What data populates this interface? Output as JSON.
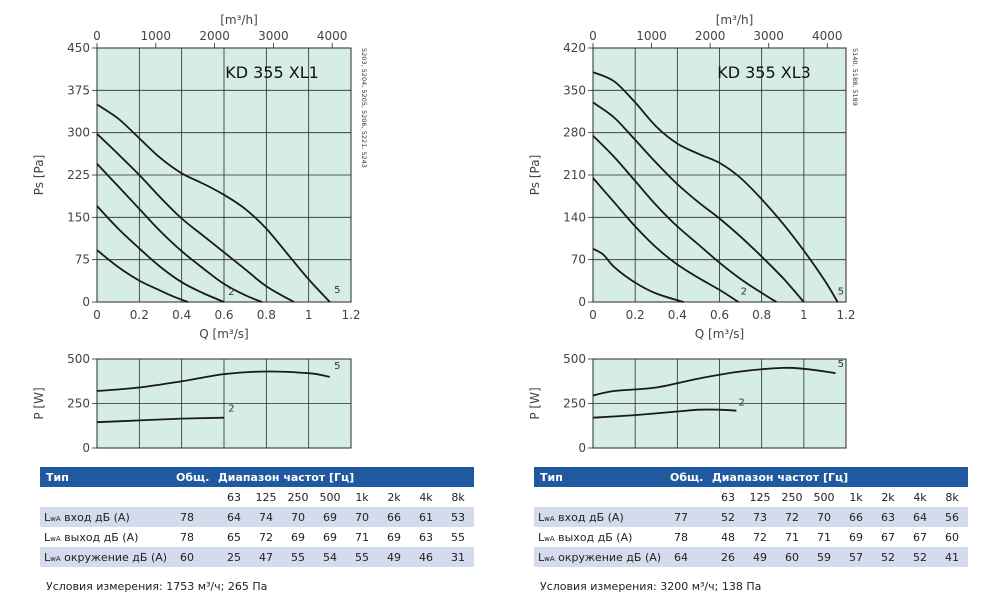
{
  "charts": [
    {
      "model": "KD 355 XL1",
      "side_text": "5203, 5204, 5205, 5206, 5221, 5243",
      "top_axis": {
        "label": "[m³/h]",
        "ticks": [
          "0",
          "1000",
          "2000",
          "3000",
          "4000"
        ]
      },
      "performance": {
        "type": "line",
        "xlabel": "Q [m³/s]",
        "ylabel": "Ps [Pa]",
        "xlim": [
          0,
          1.2
        ],
        "ylim": [
          0,
          450
        ],
        "x_ticks": [
          "0",
          "0.2",
          "0.4",
          "0.6",
          "0.8",
          "1",
          "1.2"
        ],
        "y_ticks": [
          "0",
          "75",
          "150",
          "225",
          "300",
          "375",
          "450"
        ],
        "grid": true,
        "curve_labels": [
          {
            "text": "2",
            "x": 0.62,
            "y": 12
          },
          {
            "text": "5",
            "x": 1.12,
            "y": 16
          }
        ],
        "series": [
          {
            "points": [
              [
                0,
                92
              ],
              [
                0.1,
                62
              ],
              [
                0.2,
                38
              ],
              [
                0.3,
                20
              ],
              [
                0.36,
                10
              ],
              [
                0.43,
                0
              ]
            ]
          },
          {
            "points": [
              [
                0,
                170
              ],
              [
                0.1,
                130
              ],
              [
                0.2,
                95
              ],
              [
                0.3,
                62
              ],
              [
                0.4,
                35
              ],
              [
                0.5,
                16
              ],
              [
                0.6,
                0
              ]
            ]
          },
          {
            "points": [
              [
                0,
                245
              ],
              [
                0.1,
                205
              ],
              [
                0.2,
                165
              ],
              [
                0.3,
                125
              ],
              [
                0.4,
                90
              ],
              [
                0.5,
                60
              ],
              [
                0.6,
                32
              ],
              [
                0.7,
                12
              ],
              [
                0.78,
                0
              ]
            ]
          },
          {
            "points": [
              [
                0,
                298
              ],
              [
                0.1,
                262
              ],
              [
                0.2,
                225
              ],
              [
                0.3,
                185
              ],
              [
                0.4,
                148
              ],
              [
                0.5,
                118
              ],
              [
                0.6,
                88
              ],
              [
                0.7,
                58
              ],
              [
                0.8,
                28
              ],
              [
                0.93,
                0
              ]
            ]
          },
          {
            "points": [
              [
                0,
                350
              ],
              [
                0.1,
                325
              ],
              [
                0.2,
                290
              ],
              [
                0.3,
                255
              ],
              [
                0.4,
                228
              ],
              [
                0.5,
                210
              ],
              [
                0.6,
                190
              ],
              [
                0.7,
                165
              ],
              [
                0.8,
                130
              ],
              [
                0.9,
                85
              ],
              [
                1.0,
                40
              ],
              [
                1.1,
                0
              ]
            ]
          }
        ]
      },
      "power": {
        "type": "line",
        "ylabel": "P [W]",
        "xlim": [
          0,
          1.2
        ],
        "ylim": [
          0,
          500
        ],
        "y_ticks": [
          "0",
          "250",
          "500"
        ],
        "grid": true,
        "curve_labels": [
          {
            "text": "2",
            "x": 0.62,
            "y": 205
          },
          {
            "text": "5",
            "x": 1.12,
            "y": 445
          }
        ],
        "series": [
          {
            "points": [
              [
                0,
                145
              ],
              [
                0.2,
                155
              ],
              [
                0.4,
                165
              ],
              [
                0.6,
                170
              ]
            ]
          },
          {
            "points": [
              [
                0,
                320
              ],
              [
                0.2,
                340
              ],
              [
                0.4,
                375
              ],
              [
                0.6,
                415
              ],
              [
                0.8,
                430
              ],
              [
                1.0,
                420
              ],
              [
                1.1,
                400
              ]
            ]
          }
        ]
      },
      "table": {
        "header": [
          "Тип",
          "Общ.",
          "Диапазон частот [Гц]"
        ],
        "freqs": [
          "63",
          "125",
          "250",
          "500",
          "1k",
          "2k",
          "4k",
          "8k"
        ],
        "rows": [
          {
            "pre": "L",
            "sub": "wA",
            "post": " вход дБ (A)",
            "total": "78",
            "values": [
              "64",
              "74",
              "70",
              "69",
              "70",
              "66",
              "61",
              "53"
            ]
          },
          {
            "pre": "L",
            "sub": "wA",
            "post": " выход дБ (A)",
            "total": "78",
            "values": [
              "65",
              "72",
              "69",
              "69",
              "71",
              "69",
              "63",
              "55"
            ]
          },
          {
            "pre": "L",
            "sub": "wA",
            "post": " окружение дБ (A)",
            "total": "60",
            "values": [
              "25",
              "47",
              "55",
              "54",
              "55",
              "49",
              "46",
              "31"
            ]
          }
        ],
        "condition": "Условия измерения: 1753 м³/ч; 265 Па"
      }
    },
    {
      "model": "KD 355 XL3",
      "side_text": "5140, 5188, 5189",
      "top_axis": {
        "label": "[m³/h]",
        "ticks": [
          "0",
          "1000",
          "2000",
          "3000",
          "4000"
        ]
      },
      "performance": {
        "type": "line",
        "xlabel": "Q [m³/s]",
        "ylabel": "Ps [Pa]",
        "xlim": [
          0,
          1.2
        ],
        "ylim": [
          0,
          420
        ],
        "x_ticks": [
          "0",
          "0.2",
          "0.4",
          "0.6",
          "0.8",
          "1",
          "1.2"
        ],
        "y_ticks": [
          "0",
          "70",
          "140",
          "210",
          "280",
          "350",
          "420"
        ],
        "grid": true,
        "curve_labels": [
          {
            "text": "2",
            "x": 0.7,
            "y": 12
          },
          {
            "text": "5",
            "x": 1.16,
            "y": 12
          }
        ],
        "series": [
          {
            "points": [
              [
                0,
                88
              ],
              [
                0.05,
                78
              ],
              [
                0.1,
                58
              ],
              [
                0.2,
                32
              ],
              [
                0.3,
                14
              ],
              [
                0.43,
                0
              ]
            ]
          },
          {
            "points": [
              [
                0,
                205
              ],
              [
                0.1,
                165
              ],
              [
                0.2,
                125
              ],
              [
                0.3,
                90
              ],
              [
                0.4,
                62
              ],
              [
                0.5,
                40
              ],
              [
                0.6,
                20
              ],
              [
                0.69,
                0
              ]
            ]
          },
          {
            "points": [
              [
                0,
                275
              ],
              [
                0.1,
                240
              ],
              [
                0.2,
                200
              ],
              [
                0.3,
                160
              ],
              [
                0.4,
                125
              ],
              [
                0.5,
                95
              ],
              [
                0.6,
                65
              ],
              [
                0.7,
                38
              ],
              [
                0.8,
                15
              ],
              [
                0.87,
                0
              ]
            ]
          },
          {
            "points": [
              [
                0,
                330
              ],
              [
                0.1,
                305
              ],
              [
                0.2,
                268
              ],
              [
                0.3,
                230
              ],
              [
                0.4,
                195
              ],
              [
                0.5,
                165
              ],
              [
                0.6,
                138
              ],
              [
                0.7,
                108
              ],
              [
                0.8,
                75
              ],
              [
                0.9,
                40
              ],
              [
                1.0,
                0
              ]
            ]
          },
          {
            "points": [
              [
                0,
                380
              ],
              [
                0.1,
                365
              ],
              [
                0.2,
                330
              ],
              [
                0.3,
                290
              ],
              [
                0.4,
                262
              ],
              [
                0.5,
                245
              ],
              [
                0.6,
                230
              ],
              [
                0.7,
                205
              ],
              [
                0.8,
                170
              ],
              [
                0.9,
                130
              ],
              [
                1.0,
                85
              ],
              [
                1.1,
                35
              ],
              [
                1.16,
                0
              ]
            ]
          }
        ]
      },
      "power": {
        "type": "line",
        "ylabel": "P [W]",
        "xlim": [
          0,
          1.2
        ],
        "ylim": [
          0,
          500
        ],
        "y_ticks": [
          "0",
          "250",
          "500"
        ],
        "grid": true,
        "curve_labels": [
          {
            "text": "2",
            "x": 0.69,
            "y": 240
          },
          {
            "text": "5",
            "x": 1.16,
            "y": 455
          }
        ],
        "series": [
          {
            "points": [
              [
                0,
                170
              ],
              [
                0.2,
                185
              ],
              [
                0.4,
                205
              ],
              [
                0.5,
                215
              ],
              [
                0.6,
                215
              ],
              [
                0.68,
                210
              ]
            ]
          },
          {
            "points": [
              [
                0,
                295
              ],
              [
                0.1,
                320
              ],
              [
                0.3,
                340
              ],
              [
                0.5,
                390
              ],
              [
                0.7,
                430
              ],
              [
                0.9,
                450
              ],
              [
                1.0,
                445
              ],
              [
                1.1,
                430
              ],
              [
                1.15,
                420
              ]
            ]
          }
        ]
      },
      "table": {
        "header": [
          "Тип",
          "Общ.",
          "Диапазон частот [Гц]"
        ],
        "freqs": [
          "63",
          "125",
          "250",
          "500",
          "1k",
          "2k",
          "4k",
          "8k"
        ],
        "rows": [
          {
            "pre": "L",
            "sub": "wA",
            "post": " вход дБ (A)",
            "total": "77",
            "values": [
              "52",
              "73",
              "72",
              "70",
              "66",
              "63",
              "64",
              "56"
            ]
          },
          {
            "pre": "L",
            "sub": "wA",
            "post": " выход дБ (A)",
            "total": "78",
            "values": [
              "48",
              "72",
              "71",
              "71",
              "69",
              "67",
              "67",
              "60"
            ]
          },
          {
            "pre": "L",
            "sub": "wA",
            "post": " окружение дБ (A)",
            "total": "64",
            "values": [
              "26",
              "49",
              "60",
              "59",
              "57",
              "52",
              "52",
              "41"
            ]
          }
        ],
        "condition": "Условия измерения: 3200 м³/ч; 138 Па"
      }
    }
  ],
  "chart_data": [
    {
      "type": "line",
      "title": "KD 355 XL1",
      "xlabel": "Q [m³/s]",
      "ylabel": "Ps [Pa]",
      "xlim": [
        0,
        1.2
      ],
      "ylim": [
        0,
        450
      ]
    },
    {
      "type": "line",
      "title": "KD 355 XL1",
      "ylabel": "P [W]",
      "xlim": [
        0,
        1.2
      ],
      "ylim": [
        0,
        500
      ]
    },
    {
      "type": "line",
      "title": "KD 355 XL3",
      "xlabel": "Q [m³/s]",
      "ylabel": "Ps [Pa]",
      "xlim": [
        0,
        1.2
      ],
      "ylim": [
        0,
        420
      ]
    },
    {
      "type": "line",
      "title": "KD 355 XL3",
      "ylabel": "P [W]",
      "xlim": [
        0,
        1.2
      ],
      "ylim": [
        0,
        500
      ]
    }
  ],
  "style": {
    "plot_bg": "#d6ece6",
    "grid": "#2a2a2a",
    "curve": "#1a1a1a",
    "header_bg": "#1f5aa0",
    "row_shade": "#d3dbec"
  }
}
